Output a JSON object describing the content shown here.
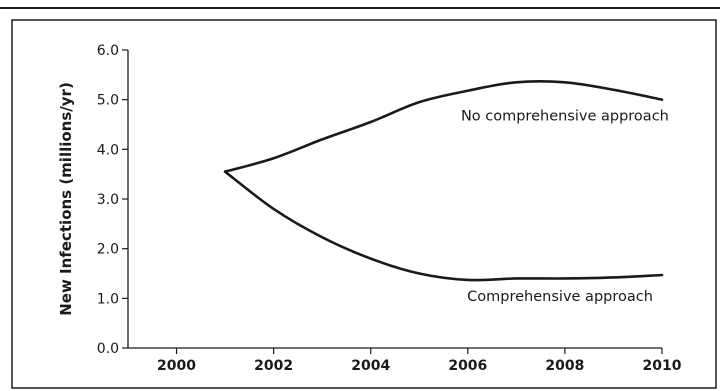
{
  "chart_data": {
    "type": "line",
    "title": "",
    "xlabel": "",
    "ylabel": "New Infections (millions/yr)",
    "xlim": [
      1999,
      2010
    ],
    "ylim": [
      0.0,
      6.0
    ],
    "x_ticks": [
      "2000",
      "2002",
      "2004",
      "2006",
      "2008",
      "2010"
    ],
    "y_ticks": [
      "0.0",
      "1.0",
      "2.0",
      "3.0",
      "4.0",
      "5.0",
      "6.0"
    ],
    "grid": false,
    "legend": "none",
    "line_color": "#1a1a1a",
    "series": [
      {
        "name": "No comprehensive approach",
        "points": [
          [
            2001,
            3.55
          ],
          [
            2002,
            3.82
          ],
          [
            2003,
            4.2
          ],
          [
            2004,
            4.55
          ],
          [
            2005,
            4.95
          ],
          [
            2006,
            5.18
          ],
          [
            2007,
            5.35
          ],
          [
            2008,
            5.35
          ],
          [
            2009,
            5.2
          ],
          [
            2010,
            5.0
          ]
        ]
      },
      {
        "name": "Comprehensive approach",
        "points": [
          [
            2001,
            3.55
          ],
          [
            2002,
            2.8
          ],
          [
            2003,
            2.23
          ],
          [
            2004,
            1.8
          ],
          [
            2005,
            1.5
          ],
          [
            2006,
            1.37
          ],
          [
            2007,
            1.4
          ],
          [
            2008,
            1.4
          ],
          [
            2009,
            1.42
          ],
          [
            2010,
            1.47
          ]
        ]
      }
    ],
    "annotations": [
      {
        "text": "No comprehensive approach",
        "x": 2008.0,
        "y": 4.58
      },
      {
        "text": "Comprehensive approach",
        "x": 2007.9,
        "y": 0.95
      }
    ]
  }
}
